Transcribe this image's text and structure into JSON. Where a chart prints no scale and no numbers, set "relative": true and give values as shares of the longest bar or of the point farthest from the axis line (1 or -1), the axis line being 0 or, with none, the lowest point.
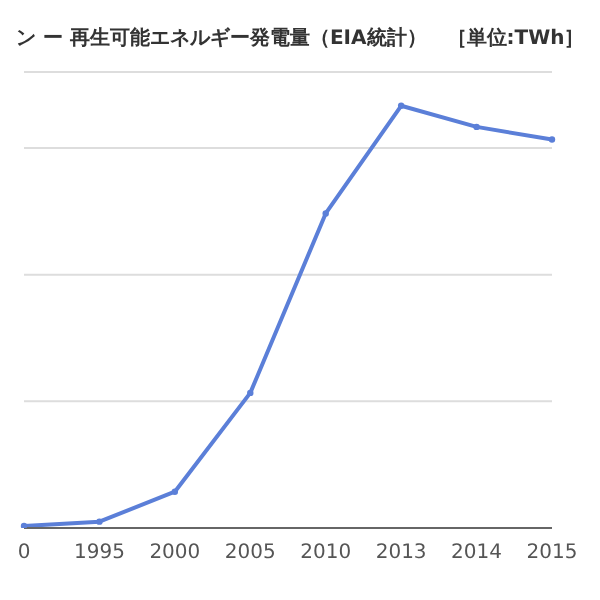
{
  "chart_data": {
    "type": "line",
    "title": "ン ー 再生可能エネルギー発電量（EIA統計）　［単位:TWh］",
    "categories": [
      "0",
      "1995",
      "2000",
      "2005",
      "2010",
      "2013",
      "2014",
      "2015"
    ],
    "series": [
      {
        "color": "#5b7fd8",
        "values": [
          0.005,
          0.015,
          0.086,
          0.32,
          0.745,
          1,
          0.95,
          0.92
        ]
      }
    ],
    "relative": true,
    "grid": "y",
    "marker": "circle",
    "line_style": "solid"
  }
}
